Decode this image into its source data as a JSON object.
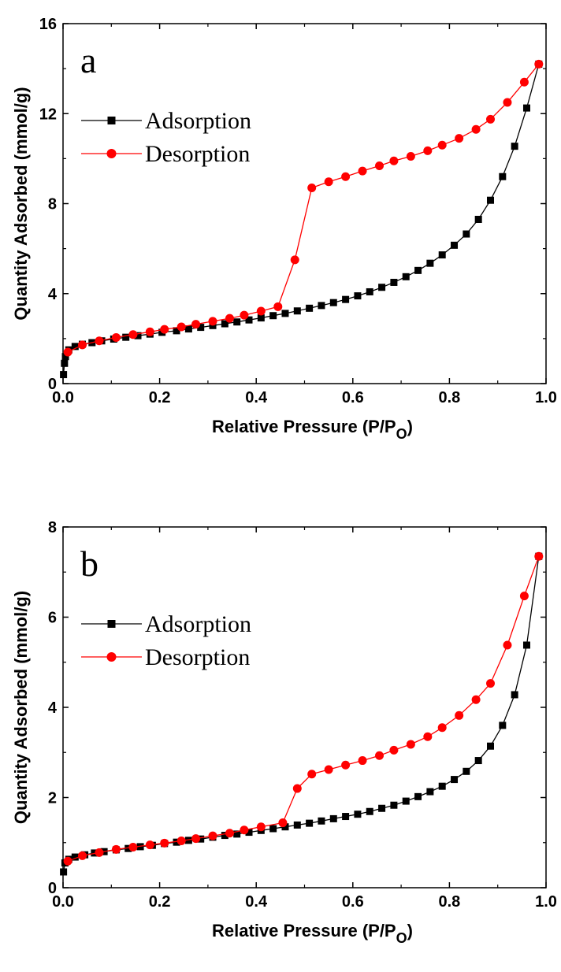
{
  "chart_data": [
    {
      "type": "line",
      "panel_label": "a",
      "xlabel": "Relative Pressure (P/P",
      "xlabel_sub": "O",
      "xlabel_end": ")",
      "ylabel": "Quantity Adsorbed (mmol/g)",
      "xlim": [
        0.0,
        1.0
      ],
      "ylim": [
        0,
        16
      ],
      "xticks": [
        "0.0",
        "0.2",
        "0.4",
        "0.6",
        "0.8",
        "1.0"
      ],
      "yticks": [
        "0",
        "4",
        "8",
        "12",
        "16"
      ],
      "xtick_values": [
        0,
        0.2,
        0.4,
        0.6,
        0.8,
        1.0
      ],
      "ytick_values": [
        0,
        4,
        8,
        12,
        16
      ],
      "grid": false,
      "legend_position": "upper-left",
      "series": [
        {
          "name": "Adsorption",
          "color": "#000000",
          "marker": "square",
          "x": [
            0.001,
            0.003,
            0.005,
            0.012,
            0.025,
            0.04,
            0.06,
            0.08,
            0.105,
            0.13,
            0.155,
            0.18,
            0.205,
            0.235,
            0.26,
            0.285,
            0.31,
            0.335,
            0.36,
            0.385,
            0.41,
            0.435,
            0.46,
            0.485,
            0.51,
            0.535,
            0.56,
            0.585,
            0.61,
            0.635,
            0.66,
            0.685,
            0.71,
            0.735,
            0.76,
            0.785,
            0.81,
            0.835,
            0.86,
            0.885,
            0.91,
            0.935,
            0.96,
            0.985
          ],
          "y": [
            0.4,
            0.9,
            1.2,
            1.5,
            1.65,
            1.75,
            1.82,
            1.9,
            1.98,
            2.06,
            2.13,
            2.2,
            2.28,
            2.35,
            2.43,
            2.5,
            2.58,
            2.66,
            2.74,
            2.83,
            2.92,
            3.02,
            3.12,
            3.23,
            3.35,
            3.47,
            3.6,
            3.74,
            3.9,
            4.08,
            4.28,
            4.5,
            4.75,
            5.03,
            5.35,
            5.72,
            6.15,
            6.65,
            7.3,
            8.15,
            9.2,
            10.55,
            12.25,
            14.2
          ]
        },
        {
          "name": "Desorption",
          "color": "#ff0000",
          "marker": "circle",
          "x": [
            0.985,
            0.955,
            0.92,
            0.885,
            0.855,
            0.82,
            0.785,
            0.755,
            0.72,
            0.685,
            0.655,
            0.62,
            0.585,
            0.55,
            0.515,
            0.48,
            0.445,
            0.41,
            0.375,
            0.345,
            0.31,
            0.275,
            0.245,
            0.21,
            0.18,
            0.145,
            0.11,
            0.075,
            0.04,
            0.01
          ],
          "y": [
            14.2,
            13.4,
            12.5,
            11.75,
            11.3,
            10.9,
            10.6,
            10.35,
            10.1,
            9.9,
            9.68,
            9.45,
            9.2,
            8.97,
            8.7,
            5.5,
            3.42,
            3.22,
            3.04,
            2.9,
            2.77,
            2.64,
            2.52,
            2.41,
            2.3,
            2.18,
            2.05,
            1.9,
            1.72,
            1.4
          ]
        }
      ]
    },
    {
      "type": "line",
      "panel_label": "b",
      "xlabel": "Relative Pressure (P/P",
      "xlabel_sub": "O",
      "xlabel_end": ")",
      "ylabel": "Quantity Adsorbed (mmol/g)",
      "xlim": [
        0.0,
        1.0
      ],
      "ylim": [
        0,
        8
      ],
      "xticks": [
        "0.0",
        "0.2",
        "0.4",
        "0.6",
        "0.8",
        "1.0"
      ],
      "yticks": [
        "0",
        "2",
        "4",
        "6",
        "8"
      ],
      "xtick_values": [
        0,
        0.2,
        0.4,
        0.6,
        0.8,
        1.0
      ],
      "ytick_values": [
        0,
        2,
        4,
        6,
        8
      ],
      "grid": false,
      "legend_position": "upper-left",
      "series": [
        {
          "name": "Adsorption",
          "color": "#000000",
          "marker": "square",
          "x": [
            0.001,
            0.004,
            0.012,
            0.025,
            0.045,
            0.065,
            0.085,
            0.11,
            0.135,
            0.16,
            0.185,
            0.21,
            0.235,
            0.26,
            0.285,
            0.31,
            0.335,
            0.36,
            0.385,
            0.41,
            0.435,
            0.46,
            0.485,
            0.51,
            0.535,
            0.56,
            0.585,
            0.61,
            0.635,
            0.66,
            0.685,
            0.71,
            0.735,
            0.76,
            0.785,
            0.81,
            0.835,
            0.86,
            0.885,
            0.91,
            0.935,
            0.96,
            0.985
          ],
          "y": [
            0.35,
            0.55,
            0.63,
            0.68,
            0.73,
            0.77,
            0.8,
            0.84,
            0.87,
            0.91,
            0.94,
            0.98,
            1.01,
            1.05,
            1.08,
            1.12,
            1.16,
            1.19,
            1.23,
            1.27,
            1.31,
            1.35,
            1.39,
            1.43,
            1.48,
            1.53,
            1.58,
            1.63,
            1.69,
            1.76,
            1.83,
            1.92,
            2.02,
            2.13,
            2.25,
            2.4,
            2.58,
            2.82,
            3.14,
            3.6,
            4.28,
            5.38,
            7.35
          ]
        },
        {
          "name": "Desorption",
          "color": "#ff0000",
          "marker": "circle",
          "x": [
            0.985,
            0.955,
            0.92,
            0.885,
            0.855,
            0.82,
            0.785,
            0.755,
            0.72,
            0.685,
            0.655,
            0.62,
            0.585,
            0.55,
            0.515,
            0.485,
            0.455,
            0.41,
            0.375,
            0.345,
            0.31,
            0.275,
            0.245,
            0.21,
            0.18,
            0.145,
            0.11,
            0.075,
            0.04,
            0.01
          ],
          "y": [
            7.35,
            6.47,
            5.38,
            4.53,
            4.17,
            3.82,
            3.55,
            3.35,
            3.18,
            3.05,
            2.93,
            2.82,
            2.72,
            2.62,
            2.52,
            2.2,
            1.44,
            1.35,
            1.28,
            1.21,
            1.15,
            1.09,
            1.04,
            0.99,
            0.95,
            0.9,
            0.85,
            0.78,
            0.71,
            0.59
          ]
        }
      ]
    }
  ]
}
